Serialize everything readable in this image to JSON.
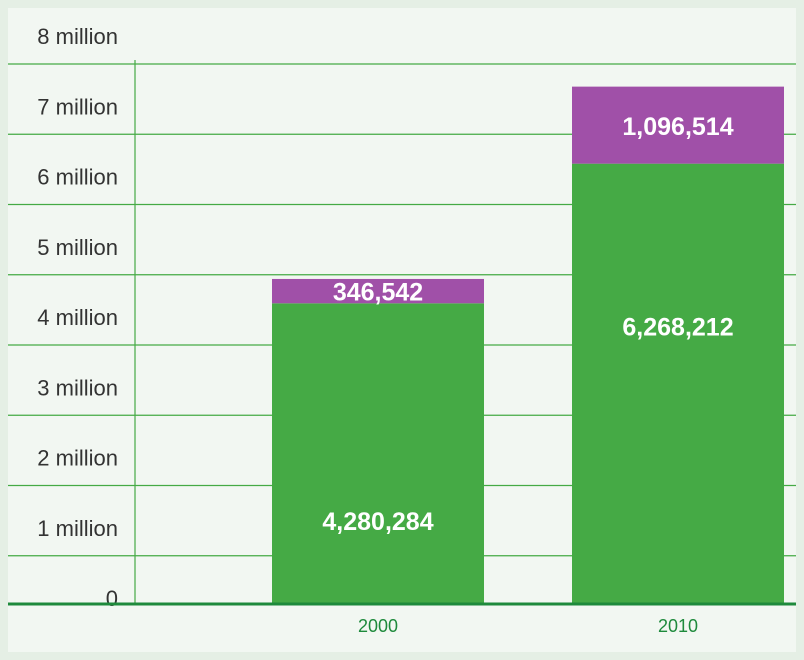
{
  "chart_data": {
    "type": "bar",
    "stacked": true,
    "categories": [
      "2000",
      "2010"
    ],
    "series": [
      {
        "values": [
          4280284,
          6268212
        ],
        "labels": [
          "4,280,284",
          "6,268,212"
        ],
        "color": "#45aa45"
      },
      {
        "values": [
          346542,
          1096514
        ],
        "labels": [
          "346,542",
          "1,096,514"
        ],
        "color": "#a050a8"
      }
    ],
    "ylim": [
      0,
      8000000
    ],
    "yticks": [
      0,
      1000000,
      2000000,
      3000000,
      4000000,
      5000000,
      6000000,
      7000000,
      8000000
    ],
    "ytick_labels": [
      "0",
      "1 million",
      "2 million",
      "3 million",
      "4 million",
      "5 million",
      "6 million",
      "7 million",
      "8 million"
    ],
    "grid": true,
    "colors": {
      "background": "#f2f7f2",
      "outer": "#e5efe5",
      "grid": "#45aa45",
      "axis": "#1e8a3c",
      "xtick": "#1e8a3c",
      "ytick": "#333333",
      "label": "#ffffff"
    }
  }
}
